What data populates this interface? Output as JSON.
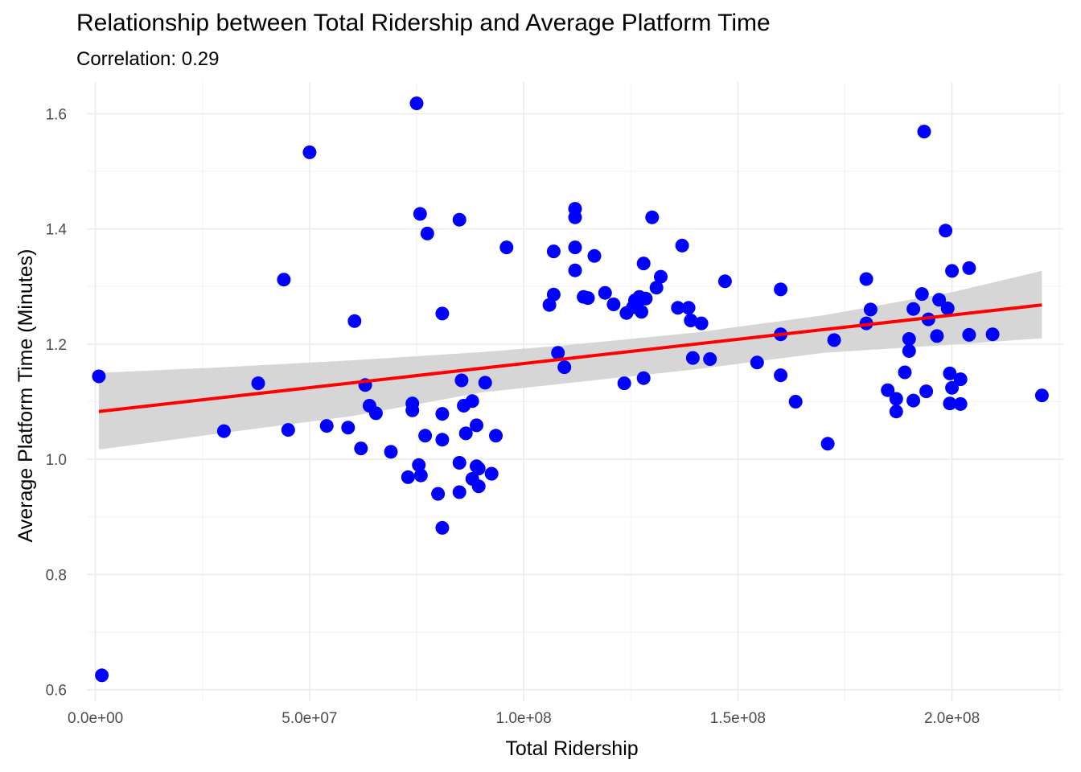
{
  "chart_data": {
    "type": "scatter",
    "title": "Relationship between Total Ridership and Average Platform Time",
    "subtitle": "Correlation: 0.29",
    "xlabel": "Total Ridership",
    "ylabel": "Average Platform Time (Minutes)",
    "xlim": [
      -2000000,
      226000000
    ],
    "ylim": [
      0.58,
      1.655
    ],
    "x_ticks": [
      {
        "value": 0,
        "label": "0.0e+00"
      },
      {
        "value": 50000000,
        "label": "5.0e+07"
      },
      {
        "value": 100000000,
        "label": "1.0e+08"
      },
      {
        "value": 150000000,
        "label": "1.5e+08"
      },
      {
        "value": 200000000,
        "label": "2.0e+08"
      }
    ],
    "y_ticks": [
      {
        "value": 0.6,
        "label": "0.6"
      },
      {
        "value": 0.8,
        "label": "0.8"
      },
      {
        "value": 1.0,
        "label": "1.0"
      },
      {
        "value": 1.2,
        "label": "1.2"
      },
      {
        "value": 1.4,
        "label": "1.4"
      },
      {
        "value": 1.6,
        "label": "1.6"
      }
    ],
    "grid": true,
    "point_color": "#0000ff",
    "trend_color": "#ff0000",
    "band_color": "#d3d3d3",
    "trend_line": {
      "x": [
        800000,
        221000000
      ],
      "y": [
        1.083,
        1.268
      ]
    },
    "confidence_band": {
      "x": [
        800000,
        30000000,
        60000000,
        90000000,
        110000000,
        140000000,
        170000000,
        200000000,
        221000000
      ],
      "upper": [
        1.15,
        1.16,
        1.172,
        1.186,
        1.198,
        1.22,
        1.25,
        1.29,
        1.327
      ],
      "lower": [
        1.017,
        1.046,
        1.075,
        1.116,
        1.132,
        1.156,
        1.185,
        1.199,
        1.21
      ]
    },
    "points": [
      [
        800000,
        1.144
      ],
      [
        1500000,
        0.625
      ],
      [
        30000000,
        1.049
      ],
      [
        38000000,
        1.132
      ],
      [
        44000000,
        1.312
      ],
      [
        45000000,
        1.051
      ],
      [
        50000000,
        1.533
      ],
      [
        54000000,
        1.058
      ],
      [
        59000000,
        1.055
      ],
      [
        60500000,
        1.24
      ],
      [
        62000000,
        1.019
      ],
      [
        63000000,
        1.129
      ],
      [
        64000000,
        1.093
      ],
      [
        65500000,
        1.08
      ],
      [
        69000000,
        1.013
      ],
      [
        73000000,
        0.969
      ],
      [
        74000000,
        1.097
      ],
      [
        74000000,
        1.085
      ],
      [
        75000000,
        1.618
      ],
      [
        75500000,
        0.99
      ],
      [
        76000000,
        0.972
      ],
      [
        75800000,
        1.426
      ],
      [
        77000000,
        1.041
      ],
      [
        77500000,
        1.392
      ],
      [
        80000000,
        0.94
      ],
      [
        81000000,
        0.881
      ],
      [
        81000000,
        1.253
      ],
      [
        81000000,
        1.034
      ],
      [
        81000000,
        1.079
      ],
      [
        85000000,
        1.416
      ],
      [
        85000000,
        0.994
      ],
      [
        85000000,
        0.943
      ],
      [
        85500000,
        1.137
      ],
      [
        86000000,
        1.093
      ],
      [
        86500000,
        1.045
      ],
      [
        88000000,
        1.101
      ],
      [
        88000000,
        0.966
      ],
      [
        89000000,
        0.988
      ],
      [
        89000000,
        1.059
      ],
      [
        89500000,
        0.953
      ],
      [
        89500000,
        0.984
      ],
      [
        91000000,
        1.133
      ],
      [
        92500000,
        0.975
      ],
      [
        93500000,
        1.041
      ],
      [
        96000000,
        1.368
      ],
      [
        106000000,
        1.268
      ],
      [
        107000000,
        1.286
      ],
      [
        107000000,
        1.361
      ],
      [
        108000000,
        1.185
      ],
      [
        109500000,
        1.16
      ],
      [
        112000000,
        1.435
      ],
      [
        112000000,
        1.42
      ],
      [
        112000000,
        1.368
      ],
      [
        112000000,
        1.328
      ],
      [
        114000000,
        1.282
      ],
      [
        115000000,
        1.28
      ],
      [
        116500000,
        1.353
      ],
      [
        119000000,
        1.289
      ],
      [
        121000000,
        1.269
      ],
      [
        123500000,
        1.132
      ],
      [
        124000000,
        1.254
      ],
      [
        125500000,
        1.264
      ],
      [
        126000000,
        1.276
      ],
      [
        126500000,
        1.27
      ],
      [
        127000000,
        1.282
      ],
      [
        127500000,
        1.256
      ],
      [
        128000000,
        1.34
      ],
      [
        128000000,
        1.141
      ],
      [
        128500000,
        1.279
      ],
      [
        130000000,
        1.42
      ],
      [
        131000000,
        1.298
      ],
      [
        132000000,
        1.317
      ],
      [
        136000000,
        1.263
      ],
      [
        137000000,
        1.371
      ],
      [
        138500000,
        1.263
      ],
      [
        139000000,
        1.241
      ],
      [
        139500000,
        1.176
      ],
      [
        141500000,
        1.236
      ],
      [
        143500000,
        1.174
      ],
      [
        147000000,
        1.309
      ],
      [
        154500000,
        1.168
      ],
      [
        160000000,
        1.295
      ],
      [
        160000000,
        1.217
      ],
      [
        160000000,
        1.146
      ],
      [
        163500000,
        1.1
      ],
      [
        171000000,
        1.027
      ],
      [
        172500000,
        1.207
      ],
      [
        180000000,
        1.313
      ],
      [
        180000000,
        1.236
      ],
      [
        181000000,
        1.26
      ],
      [
        185000000,
        1.12
      ],
      [
        187000000,
        1.105
      ],
      [
        187000000,
        1.083
      ],
      [
        189000000,
        1.151
      ],
      [
        190000000,
        1.188
      ],
      [
        190000000,
        1.209
      ],
      [
        191000000,
        1.261
      ],
      [
        191000000,
        1.102
      ],
      [
        193000000,
        1.287
      ],
      [
        193500000,
        1.569
      ],
      [
        194000000,
        1.118
      ],
      [
        194500000,
        1.243
      ],
      [
        196500000,
        1.214
      ],
      [
        197000000,
        1.277
      ],
      [
        198500000,
        1.397
      ],
      [
        199000000,
        1.262
      ],
      [
        199500000,
        1.097
      ],
      [
        199500000,
        1.149
      ],
      [
        200000000,
        1.327
      ],
      [
        200000000,
        1.124
      ],
      [
        202000000,
        1.139
      ],
      [
        202000000,
        1.096
      ],
      [
        204000000,
        1.332
      ],
      [
        204000000,
        1.216
      ],
      [
        209500000,
        1.217
      ],
      [
        221000000,
        1.111
      ]
    ]
  }
}
